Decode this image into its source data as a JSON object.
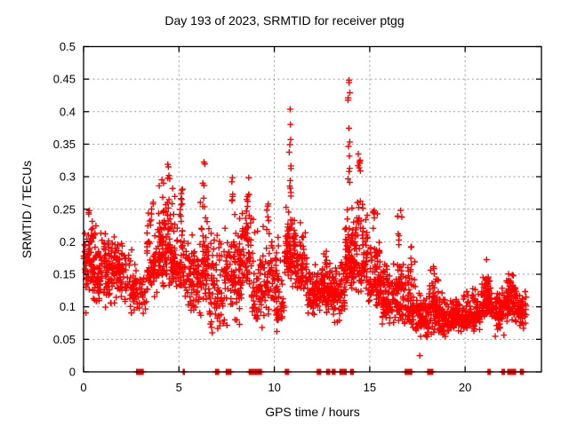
{
  "title": "Day 193 of 2023, SRMTID for receiver ptgg",
  "xlabel": "GPS time / hours",
  "ylabel": "SRMTID / TECUs",
  "colors": {
    "points": "#ff0000",
    "grid": "#9a9a9a",
    "axis": "#000000",
    "background": "#ffffff",
    "text": "#000000"
  },
  "chart_data": {
    "type": "scatter",
    "marker": "plus",
    "series_name": "SRMTID",
    "series_color": "#ff0000",
    "title": "Day 193 of 2023, SRMTID for receiver ptgg",
    "xlabel": "GPS time / hours",
    "ylabel": "SRMTID / TECUs",
    "xlim": [
      0,
      24
    ],
    "ylim": [
      0,
      0.5
    ],
    "x_ticks": [
      0,
      5,
      10,
      15,
      20
    ],
    "x_tick_labels": [
      "0",
      "5",
      "10",
      "15",
      "20"
    ],
    "y_ticks": [
      0,
      0.05,
      0.1,
      0.15,
      0.2,
      0.25,
      0.3,
      0.35,
      0.4,
      0.45,
      0.5
    ],
    "y_tick_labels": [
      "0",
      "0.05",
      "0.1",
      "0.15",
      "0.2",
      "0.25",
      "0.3",
      "0.35",
      "0.4",
      "0.45",
      "0.5"
    ],
    "grid": true,
    "legend": "none",
    "seed": 7,
    "bands_format": [
      "t_start_hours",
      "t_end_hours",
      "n_points",
      "y_min",
      "y_max",
      "y_center"
    ],
    "bands": [
      [
        0.0,
        0.7,
        90,
        0.08,
        0.25,
        0.16
      ],
      [
        0.7,
        1.5,
        100,
        0.09,
        0.23,
        0.15
      ],
      [
        1.5,
        2.4,
        90,
        0.08,
        0.22,
        0.15
      ],
      [
        2.4,
        2.8,
        40,
        0.08,
        0.2,
        0.13
      ],
      [
        2.8,
        3.3,
        30,
        0.08,
        0.17,
        0.12
      ],
      [
        3.3,
        3.9,
        60,
        0.1,
        0.28,
        0.16
      ],
      [
        3.9,
        4.6,
        110,
        0.1,
        0.32,
        0.19
      ],
      [
        4.6,
        5.3,
        90,
        0.1,
        0.3,
        0.17
      ],
      [
        5.3,
        6.1,
        80,
        0.07,
        0.25,
        0.14
      ],
      [
        6.1,
        6.6,
        60,
        0.08,
        0.3,
        0.16
      ],
      [
        6.6,
        7.4,
        80,
        0.03,
        0.25,
        0.13
      ],
      [
        7.4,
        8.2,
        90,
        0.05,
        0.28,
        0.15
      ],
      [
        8.2,
        8.8,
        70,
        0.1,
        0.29,
        0.18
      ],
      [
        8.8,
        9.4,
        60,
        0.05,
        0.25,
        0.13
      ],
      [
        9.4,
        9.9,
        50,
        0.07,
        0.27,
        0.14
      ],
      [
        9.9,
        10.5,
        60,
        0.05,
        0.22,
        0.12
      ],
      [
        10.5,
        11.1,
        80,
        0.12,
        0.28,
        0.19
      ],
      [
        11.1,
        11.7,
        70,
        0.1,
        0.24,
        0.16
      ],
      [
        11.7,
        12.4,
        80,
        0.07,
        0.18,
        0.12
      ],
      [
        12.4,
        13.1,
        90,
        0.08,
        0.2,
        0.13
      ],
      [
        13.1,
        13.7,
        70,
        0.06,
        0.19,
        0.12
      ],
      [
        13.7,
        14.2,
        90,
        0.1,
        0.28,
        0.17
      ],
      [
        14.2,
        14.9,
        90,
        0.1,
        0.3,
        0.17
      ],
      [
        14.9,
        15.6,
        90,
        0.08,
        0.26,
        0.14
      ],
      [
        15.6,
        16.4,
        90,
        0.06,
        0.2,
        0.11
      ],
      [
        16.4,
        16.8,
        50,
        0.06,
        0.22,
        0.12
      ],
      [
        16.8,
        17.4,
        70,
        0.05,
        0.2,
        0.1
      ],
      [
        17.4,
        18.1,
        90,
        0.04,
        0.14,
        0.085
      ],
      [
        18.1,
        18.6,
        70,
        0.05,
        0.17,
        0.1
      ],
      [
        18.6,
        19.4,
        90,
        0.04,
        0.13,
        0.08
      ],
      [
        19.4,
        20.2,
        90,
        0.05,
        0.13,
        0.085
      ],
      [
        20.2,
        20.9,
        80,
        0.05,
        0.15,
        0.09
      ],
      [
        20.9,
        21.4,
        70,
        0.07,
        0.17,
        0.11
      ],
      [
        21.4,
        22.1,
        70,
        0.05,
        0.15,
        0.09
      ],
      [
        22.1,
        22.7,
        70,
        0.05,
        0.17,
        0.11
      ],
      [
        22.7,
        23.2,
        50,
        0.06,
        0.14,
        0.095
      ]
    ],
    "spikes_format": [
      "t_hours",
      "n_points",
      "y_min",
      "y_max",
      "t_jitter_hours"
    ],
    "spikes": [
      [
        0.3,
        4,
        0.21,
        0.252,
        0.1
      ],
      [
        3.6,
        5,
        0.23,
        0.285,
        0.12
      ],
      [
        4.45,
        7,
        0.26,
        0.322,
        0.15
      ],
      [
        5.15,
        5,
        0.24,
        0.3,
        0.1
      ],
      [
        6.3,
        7,
        0.24,
        0.332,
        0.12
      ],
      [
        7.8,
        6,
        0.24,
        0.302,
        0.12
      ],
      [
        8.6,
        7,
        0.24,
        0.3,
        0.15
      ],
      [
        9.65,
        5,
        0.23,
        0.278,
        0.1
      ],
      [
        10.82,
        12,
        0.27,
        0.405,
        0.12
      ],
      [
        12.7,
        4,
        0.16,
        0.21,
        0.08
      ],
      [
        13.92,
        13,
        0.29,
        0.472,
        0.12
      ],
      [
        14.45,
        7,
        0.29,
        0.355,
        0.12
      ],
      [
        15.2,
        4,
        0.22,
        0.26,
        0.1
      ],
      [
        16.5,
        6,
        0.18,
        0.243,
        0.08
      ],
      [
        17.15,
        5,
        0.15,
        0.215,
        0.08
      ],
      [
        18.35,
        4,
        0.12,
        0.175,
        0.08
      ],
      [
        21.1,
        4,
        0.13,
        0.177,
        0.08
      ],
      [
        22.5,
        5,
        0.12,
        0.155,
        0.08
      ]
    ],
    "singles": [
      [
        17.62,
        0.025
      ],
      [
        16.62,
        0.248
      ],
      [
        16.68,
        0.238
      ]
    ],
    "zero_value_intervals": [
      [
        2.78,
        3.12
      ],
      [
        5.22,
        5.28
      ],
      [
        6.92,
        7.08
      ],
      [
        7.48,
        7.72
      ],
      [
        8.68,
        9.32
      ],
      [
        10.58,
        10.74
      ],
      [
        12.25,
        12.42
      ],
      [
        12.74,
        12.9
      ],
      [
        13.04,
        13.18
      ],
      [
        13.44,
        13.56
      ],
      [
        13.62,
        13.76
      ],
      [
        14.0,
        14.14
      ],
      [
        16.86,
        17.0
      ],
      [
        17.06,
        17.2
      ],
      [
        18.04,
        18.16
      ],
      [
        18.22,
        18.3
      ],
      [
        21.2,
        21.32
      ],
      [
        21.94,
        22.06
      ],
      [
        22.24,
        22.48
      ],
      [
        22.52,
        22.64
      ],
      [
        22.9,
        23.04
      ]
    ]
  }
}
